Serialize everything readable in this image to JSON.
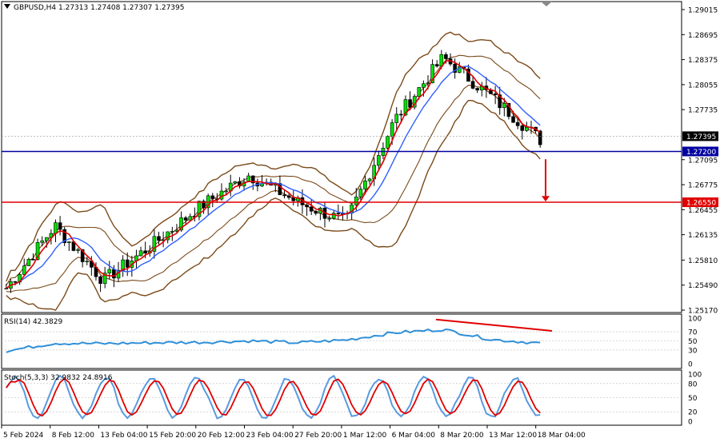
{
  "header": {
    "symbol_title": "GBPUSD,H4  1.27313 1.27408 1.27307 1.27395"
  },
  "indicators": {
    "rsi_label": "RSI(14) 42.3829",
    "stoch_label": "Stoch(5,3,3) 32.9832 24.8916"
  },
  "price_axis": {
    "ticks": [
      "1.29015",
      "1.28695",
      "1.28375",
      "1.28055",
      "1.27735",
      "1.27395",
      "1.27200",
      "1.27095",
      "1.26775",
      "1.26550",
      "1.26455",
      "1.26135",
      "1.25810",
      "1.25490",
      "1.25170"
    ],
    "current_price": "1.27395",
    "support_level": "1.27200",
    "resistance_level": "1.26550"
  },
  "rsi_axis": {
    "ticks": [
      "100",
      "70",
      "50",
      "30",
      "0"
    ]
  },
  "stoch_axis": {
    "ticks": [
      "100",
      "80",
      "50",
      "20",
      "0"
    ]
  },
  "time_axis": {
    "labels": [
      "5 Feb 2024",
      "8 Feb 12:00",
      "13 Feb 04:00",
      "15 Feb 20:00",
      "20 Feb 12:00",
      "23 Feb 04:00",
      "27 Feb 20:00",
      "1 Mar 12:00",
      "6 Mar 04:00",
      "8 Mar 20:00",
      "13 Mar 12:00",
      "18 Mar 04:00"
    ]
  },
  "colors": {
    "background": "#ffffff",
    "bull_candle": "#00e000",
    "price_bars": "#000000",
    "bollinger": "#7b4a1a",
    "ma_fast": "#e00000",
    "ma_slow": "#3060ff",
    "support_line": "#0000a0",
    "resistance_line": "#e00000",
    "rsi_line": "#2f8fd8",
    "stoch_main": "#5a9ae0",
    "stoch_signal": "#e00000",
    "axis_text": "#000000"
  },
  "chart_data": [
    {
      "type": "line",
      "title": "GBPUSD,H4",
      "x": [
        "5 Feb 2024",
        "8 Feb 12:00",
        "13 Feb 04:00",
        "15 Feb 20:00",
        "20 Feb 12:00",
        "23 Feb 04:00",
        "27 Feb 20:00",
        "1 Mar 12:00",
        "6 Mar 04:00",
        "8 Mar 20:00",
        "13 Mar 12:00",
        "18 Mar 04:00"
      ],
      "ylim": [
        1.2517,
        1.29015
      ],
      "series": [
        {
          "name": "",
          "values": [
            1.2545,
            1.2625,
            1.2555,
            1.26,
            1.265,
            1.269,
            1.2655,
            1.263,
            1.276,
            1.284,
            1.279,
            1.2735
          ]
        }
      ],
      "horizontal_lines": [
        {
          "label": "1.27200",
          "value": 1.272,
          "color": "#0000a0"
        },
        {
          "label": "1.26550",
          "value": 1.2655,
          "color": "#e00000"
        }
      ],
      "current_price": 1.27395,
      "annotation": "arrow down from 1.2710 to 1.2660"
    },
    {
      "type": "line",
      "title": "RSI(14) 42.3829",
      "ylim": [
        0,
        100
      ],
      "levels": [
        70,
        50,
        30
      ],
      "series": [
        {
          "name": "",
          "values": [
            28,
            45,
            44,
            46,
            47,
            50,
            46,
            52,
            68,
            75,
            53,
            45
          ]
        }
      ],
      "annotation": "trendline from 75 to 60 (bearish divergence)"
    },
    {
      "type": "line",
      "title": "Stoch(5,3,3) 32.9832 24.8916",
      "ylim": [
        0,
        100
      ],
      "levels": [
        80,
        50,
        20
      ],
      "series": [
        {
          "name": "",
          "values": [
            15,
            85,
            15,
            90,
            20,
            90,
            15,
            90,
            15,
            88,
            15,
            33
          ]
        },
        {
          "name": "",
          "values": [
            12,
            80,
            20,
            85,
            25,
            85,
            20,
            85,
            20,
            83,
            20,
            25
          ]
        }
      ]
    }
  ]
}
